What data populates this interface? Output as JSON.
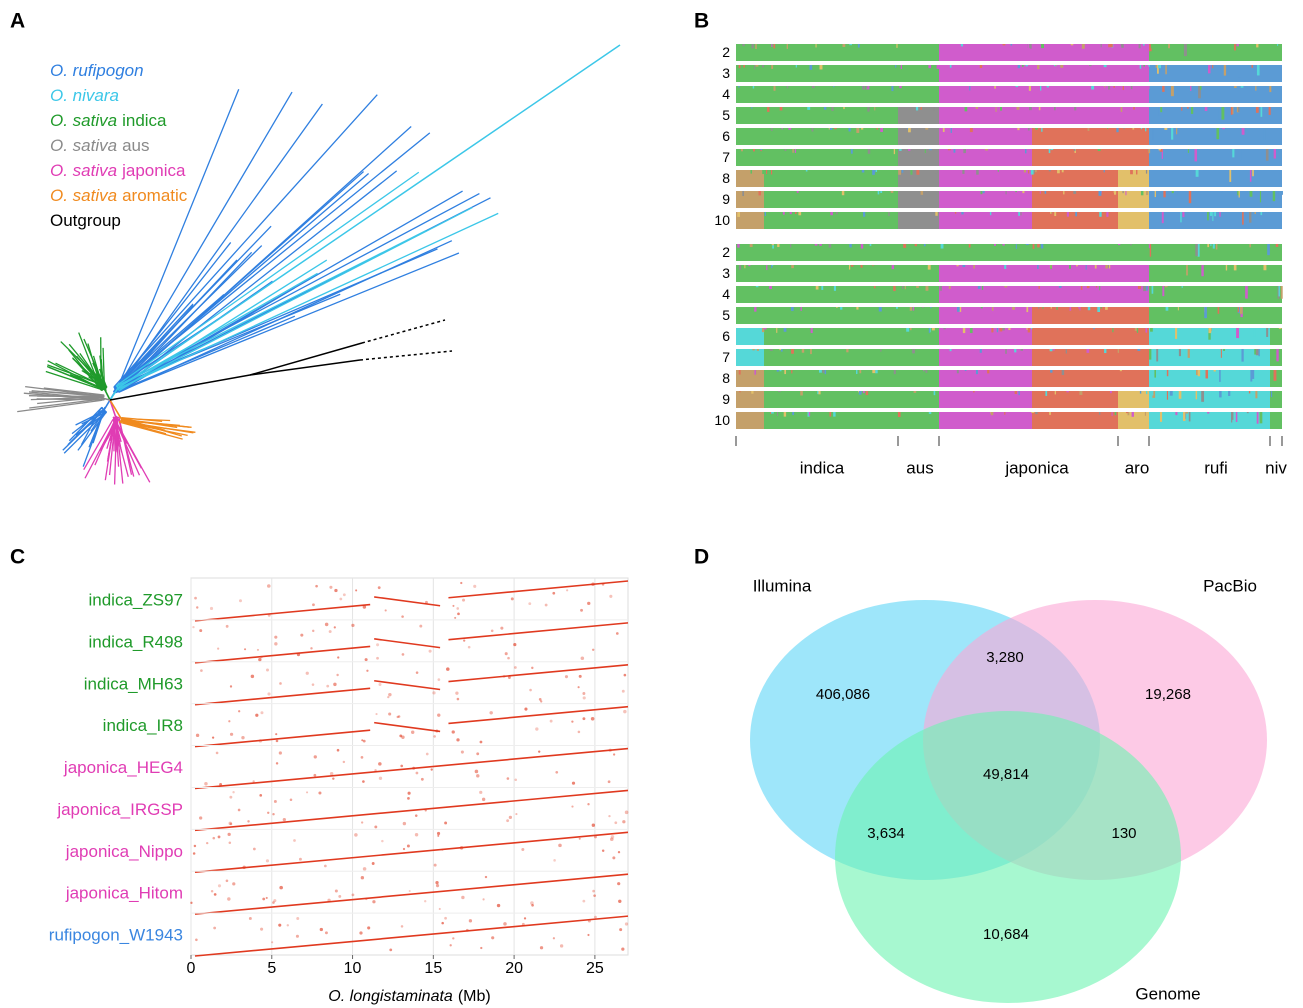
{
  "panel_labels": [
    "A",
    "B",
    "C",
    "D"
  ],
  "tree": {
    "legend": [
      {
        "species": "O. rufipogon",
        "color": "#2f7fe0"
      },
      {
        "species": "O. nivara",
        "color": "#3cc7e8"
      },
      {
        "species": "O. sativa",
        "group": "indica",
        "color": "#1f9a2a"
      },
      {
        "species": "O. sativa",
        "group": "aus",
        "color": "#8a8a8a"
      },
      {
        "species": "O. sativa",
        "group": "japonica",
        "color": "#e03cb4"
      },
      {
        "species": "O. sativa",
        "group": "aromatic",
        "color": "#f08a1e"
      },
      {
        "group": "Outgroup",
        "color": "#000000"
      }
    ]
  },
  "structure": {
    "k_values": [
      2,
      3,
      4,
      5,
      6,
      7,
      8,
      9,
      10
    ],
    "groups": [
      "indica",
      "aus",
      "japonica",
      "aro",
      "rufi",
      "niv"
    ]
  },
  "chart_data": {
    "type": "dotplot",
    "categories": [
      "indica_ZS97",
      "indica_R498",
      "indica_MH63",
      "indica_IR8",
      "japonica_HEG4",
      "japonica_IRGSP",
      "japonica_Nippo",
      "japonica_Hitom",
      "rufipogon_W1943"
    ],
    "category_colors": [
      "#1f9a2a",
      "#1f9a2a",
      "#1f9a2a",
      "#1f9a2a",
      "#e03cb4",
      "#e03cb4",
      "#e03cb4",
      "#e03cb4",
      "#3a86e0"
    ],
    "color": "#e0391f",
    "xlabel": {
      "italic": "O. longistaminata",
      "unit": "(Mb)"
    },
    "xlim": [
      0,
      27.05
    ],
    "xticks": [
      0,
      5,
      10,
      15,
      20,
      25
    ],
    "grid": true
  },
  "venn": {
    "sets": [
      {
        "name": "Illumina",
        "color": "#5dd6f7"
      },
      {
        "name": "PacBio",
        "color": "#fba6d6"
      },
      {
        "name": "Genome",
        "color": "#6cf4b0"
      }
    ],
    "regions": [
      "406,086",
      "3,280",
      "19,268",
      "49,814",
      "3,634",
      "130",
      "10,684"
    ]
  }
}
